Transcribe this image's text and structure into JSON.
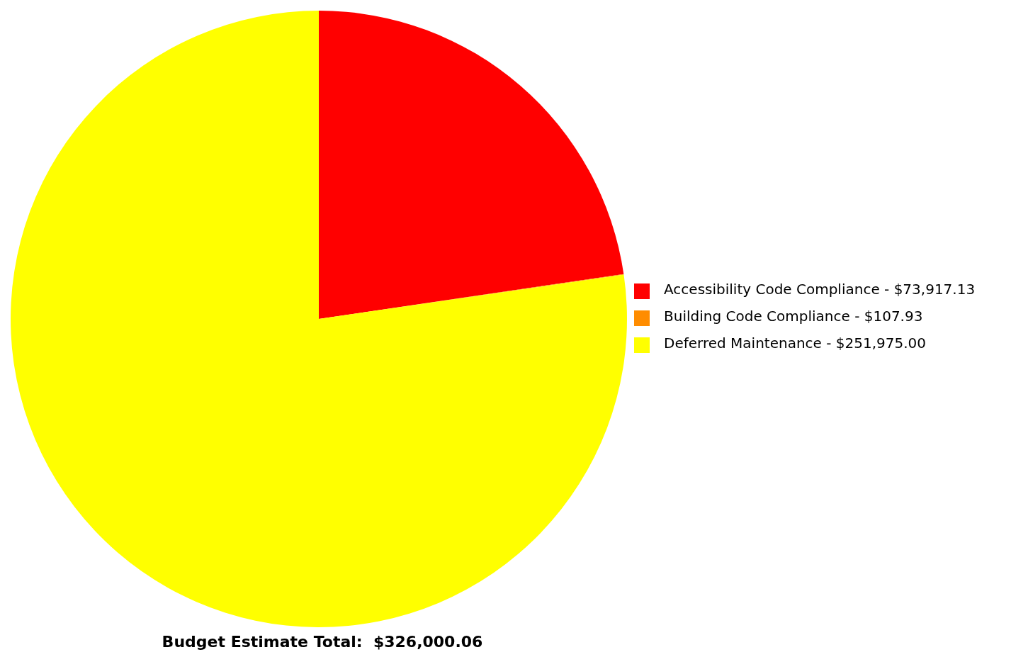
{
  "chart_data": {
    "type": "pie",
    "title": "Budget Estimate Total:  $326,000.06",
    "categories": [
      "Accessibility Code Compliance",
      "Building Code Compliance",
      "Deferred Maintenance"
    ],
    "values": [
      73917.13,
      107.93,
      251975.0
    ],
    "value_labels": [
      "$73,917.13",
      "$107.93",
      "$251,975.00"
    ],
    "colors": [
      "#ff0000",
      "#ff8c00",
      "#ffff00"
    ],
    "legend": "right"
  }
}
